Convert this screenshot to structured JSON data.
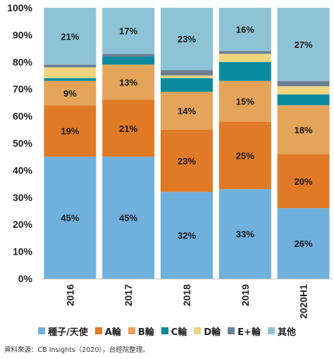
{
  "chart_data": {
    "type": "bar",
    "stacked": true,
    "categories": [
      "2016",
      "2017",
      "2018",
      "2019",
      "2020H1"
    ],
    "ylim": [
      0,
      100
    ],
    "yticks": [
      "0%",
      "10%",
      "20%",
      "30%",
      "40%",
      "50%",
      "60%",
      "70%",
      "80%",
      "90%",
      "100%"
    ],
    "grid": false,
    "legend_position": "bottom",
    "series": [
      {
        "name": "種子/天使",
        "color": "#6fb0dd",
        "values": [
          45,
          45,
          32,
          33,
          26
        ],
        "labels": [
          "45%",
          "45%",
          "32%",
          "33%",
          "26%"
        ]
      },
      {
        "name": "A輪",
        "color": "#e07a26",
        "values": [
          19,
          21,
          23,
          25,
          20
        ],
        "labels": [
          "19%",
          "21%",
          "23%",
          "25%",
          "20%"
        ]
      },
      {
        "name": "B輪",
        "color": "#e4a459",
        "values": [
          9,
          13,
          14,
          15,
          18
        ],
        "labels": [
          "9%",
          "13%",
          "14%",
          "15%",
          "18%"
        ]
      },
      {
        "name": "C輪",
        "color": "#0b8a9e",
        "values": [
          1,
          3,
          5,
          7,
          4
        ],
        "labels": [
          "",
          "",
          "",
          "",
          ""
        ]
      },
      {
        "name": "D輪",
        "color": "#f0d47e",
        "values": [
          4,
          0,
          1,
          3,
          3
        ],
        "labels": [
          "",
          "",
          "",
          "",
          ""
        ]
      },
      {
        "name": "E+輪",
        "color": "#6d7f93",
        "values": [
          1,
          1,
          2,
          1,
          2
        ],
        "labels": [
          "",
          "",
          "",
          "",
          ""
        ]
      },
      {
        "name": "其他",
        "color": "#8ec3d6",
        "values": [
          21,
          17,
          23,
          16,
          27
        ],
        "labels": [
          "21%",
          "17%",
          "23%",
          "16%",
          "27%"
        ]
      }
    ]
  },
  "source_note": "資料來源：CB Insights（2020），台經院整理。"
}
